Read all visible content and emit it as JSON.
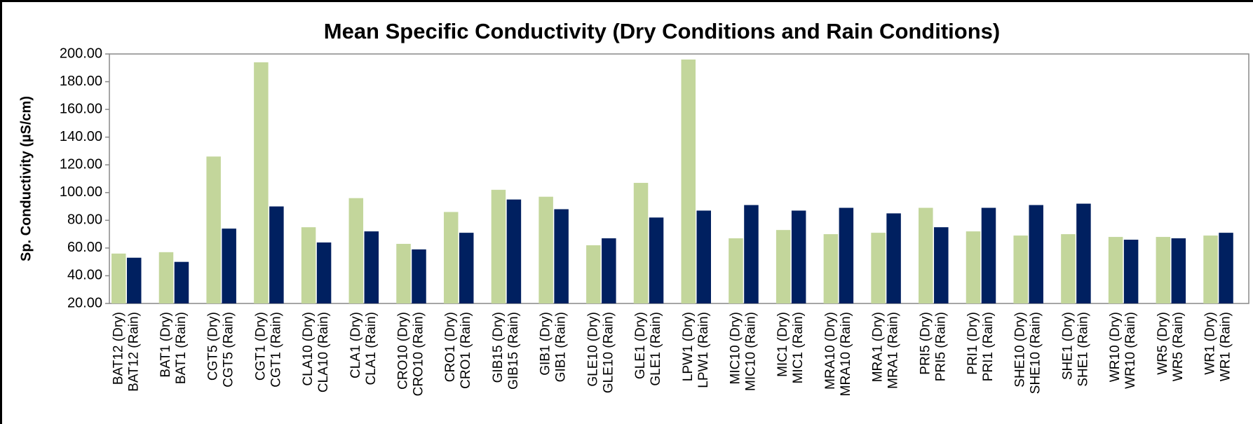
{
  "chart_data": {
    "type": "bar",
    "title": "Mean Specific Conductivity (Dry Conditions and Rain Conditions)",
    "y_label": "Sp. Conductivity  (µS/cm)",
    "categories": [
      "BAT12 (Dry)",
      "BAT12 (Rain)",
      "BAT1 (Dry)",
      "BAT1 (Rain)",
      "CGT5 (Dry)",
      "CGT5 (Rain)",
      "CGT1 (Dry)",
      "CGT1 (Rain)",
      "CLA10 (Dry)",
      "CLA10 (Rain)",
      "CLA1 (Dry)",
      "CLA1 (Rain)",
      "CRO10 (Dry)",
      "CRO10 (Rain)",
      "CRO1 (Dry)",
      "CRO1 (Rain)",
      "GIB15 (Dry)",
      "GIB15 (Rain)",
      "GIB1 (Dry)",
      "GIB1 (Rain)",
      "GLE10 (Dry)",
      "GLE10 (Rain)",
      "GLE1 (Dry)",
      "GLE1 (Rain)",
      "LPW1 (Dry)",
      "LPW1 (Rain)",
      "MIC10 (Dry)",
      "MIC10 (Rain)",
      "MIC1 (Dry)",
      "MIC1 (Rain)",
      "MRA10 (Dry)",
      "MRA10 (Rain)",
      "MRA1 (Dry)",
      "MRA1 (Rain)",
      "PRI5 (Dry)",
      "PRI5 (Rain)",
      "PRI1 (Dry)",
      "PRI1 (Rain)",
      "SHE10 (Dry)",
      "SHE10 (Rain)",
      "SHE1 (Dry)",
      "SHE1 (Rain)",
      "WR10 (Dry)",
      "WR10 (Rain)",
      "WR5 (Dry)",
      "WR5 (Rain)",
      "WR1 (Dry)",
      "WR1 (Rain)"
    ],
    "values": [
      56,
      53,
      57,
      50,
      126,
      74,
      194,
      90,
      75,
      64,
      96,
      72,
      63,
      59,
      86,
      71,
      102,
      95,
      97,
      88,
      62,
      67,
      107,
      82,
      196,
      87,
      67,
      91,
      73,
      87,
      70,
      89,
      71,
      85,
      89,
      75,
      72,
      89,
      69,
      91,
      70,
      92,
      68,
      66,
      68,
      67,
      69,
      71
    ],
    "bar_colors": [
      "#c3d69b",
      "#002060"
    ],
    "ylim": [
      20,
      200
    ],
    "yticks": [
      {
        "value": 20,
        "label": "20.00"
      },
      {
        "value": 40,
        "label": "40.00"
      },
      {
        "value": 60,
        "label": "60.00"
      },
      {
        "value": 80,
        "label": "80.00"
      },
      {
        "value": 100,
        "label": "100.00"
      },
      {
        "value": 120,
        "label": "120.00"
      },
      {
        "value": 140,
        "label": "140.00"
      },
      {
        "value": 160,
        "label": "160.00"
      },
      {
        "value": 180,
        "label": "180.00"
      },
      {
        "value": 200,
        "label": "200.00"
      }
    ],
    "grid": false
  }
}
